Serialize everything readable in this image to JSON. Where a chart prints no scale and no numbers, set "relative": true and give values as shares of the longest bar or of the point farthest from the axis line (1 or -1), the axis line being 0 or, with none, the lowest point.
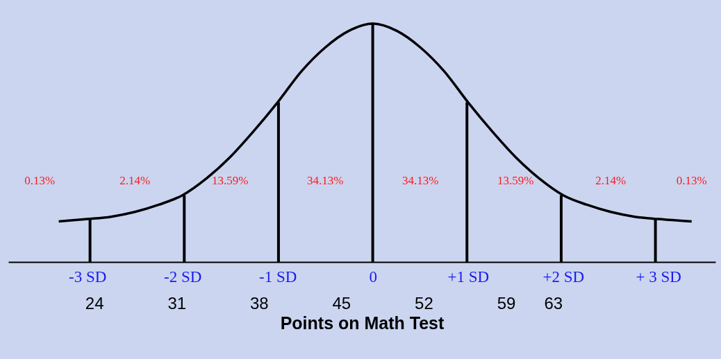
{
  "chart_data": {
    "type": "line",
    "relative": true,
    "x2label": "Points on Math Test",
    "x": [
      -3.3,
      -3,
      -2.75,
      -2.5,
      -2.25,
      -2,
      -1.75,
      -1.5,
      -1.25,
      -1,
      -0.75,
      -0.5,
      -0.25,
      0,
      0.25,
      0.5,
      0.75,
      1,
      1.25,
      1.5,
      1.75,
      2,
      2.25,
      2.5,
      2.75,
      3,
      3.35
    ],
    "series": [
      {
        "color": "#000000",
        "values": [
          0.17,
          0.18,
          0.19,
          0.21,
          0.24,
          0.28,
          0.35,
          0.44,
          0.55,
          0.67,
          0.8,
          0.9,
          0.97,
          1,
          0.97,
          0.9,
          0.8,
          0.67,
          0.55,
          0.44,
          0.35,
          0.28,
          0.24,
          0.21,
          0.19,
          0.18,
          0.17
        ]
      },
      {
        "type": "bar",
        "color": "#000000",
        "x": [
          -3,
          -2,
          -1,
          0,
          1,
          2,
          3
        ],
        "values": [
          0.18,
          0.28,
          0.67,
          1,
          0.67,
          0.28,
          0.18
        ]
      }
    ],
    "xlim": [
      -3.83,
      3.6
    ],
    "xticks": [
      {
        "value": -3,
        "label": "-3 SD"
      },
      {
        "value": -2,
        "label": "-2 SD"
      },
      {
        "value": -1,
        "label": "-1 SD"
      },
      0,
      {
        "value": 1,
        "label": "+1 SD"
      },
      {
        "value": 2,
        "label": "+2 SD"
      },
      {
        "value": 3,
        "label": "+ 3 SD"
      }
    ],
    "x2lim": [
      16.7,
      76.8
    ],
    "x2ticks": [
      24,
      31,
      38,
      45,
      52,
      59,
      63
    ],
    "annotations": [
      "0.13%",
      "2.14%",
      "13.59%",
      "34.13%",
      "34.13%",
      "13.59%",
      "2.14%",
      "0.13%"
    ]
  }
}
